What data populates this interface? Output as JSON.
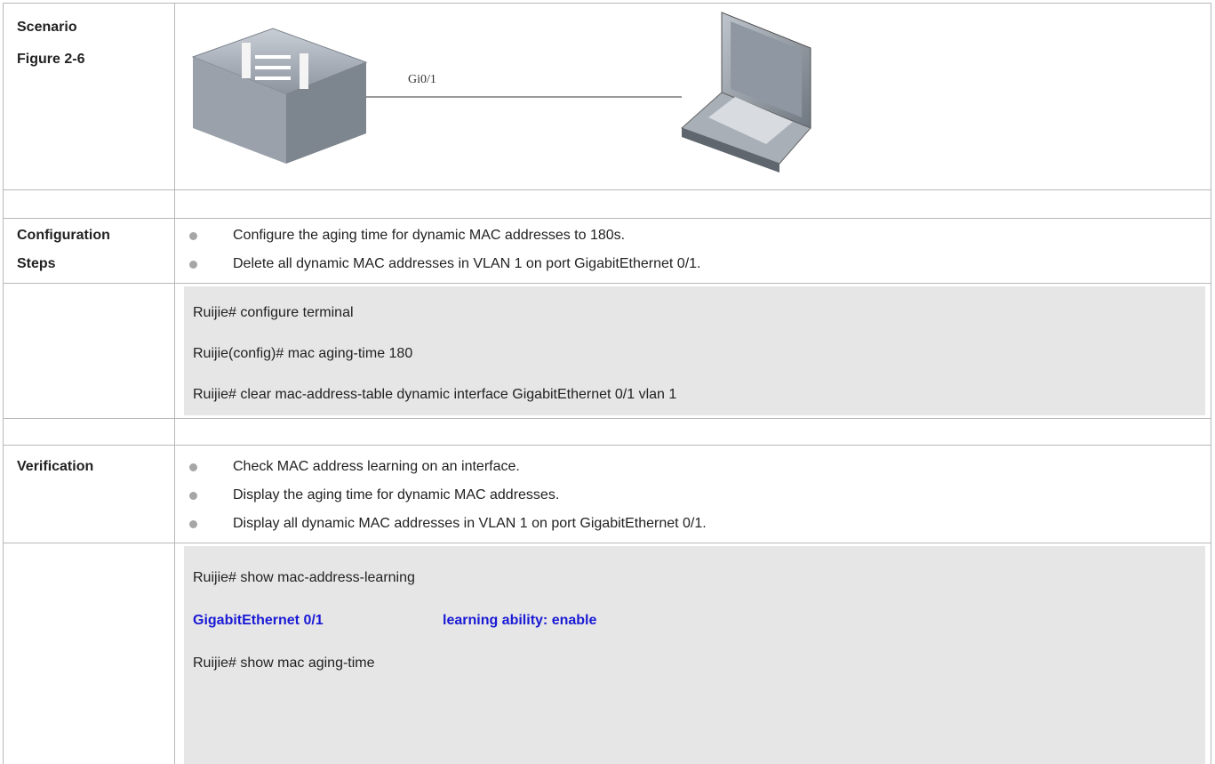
{
  "scenario": {
    "label_lines": [
      "Scenario",
      "Figure 2-6"
    ],
    "port_label": "Gi0/1"
  },
  "config_steps": {
    "label_lines": [
      "Configuration",
      "Steps"
    ],
    "bullets": [
      "Configure the aging time for dynamic MAC addresses to 180s.",
      "Delete all dynamic MAC addresses in VLAN 1 on port GigabitEthernet 0/1."
    ]
  },
  "config_code": {
    "lines": [
      "Ruijie# configure terminal",
      "Ruijie(config)# mac aging-time 180",
      "Ruijie# clear mac-address-table dynamic interface GigabitEthernet 0/1 vlan 1"
    ]
  },
  "verification": {
    "label_lines": [
      "Verification"
    ],
    "bullets": [
      "Check MAC address learning on an interface.",
      "Display the aging time for dynamic MAC addresses.",
      "Display all dynamic MAC addresses in VLAN 1 on port GigabitEthernet 0/1."
    ]
  },
  "verification_code": {
    "command": "Ruijie# show mac-address-learning",
    "output": {
      "interface": "GigabitEthernet 0/1",
      "status": "learning ability: enable"
    },
    "next_command": "Ruijie# show mac aging-time"
  }
}
